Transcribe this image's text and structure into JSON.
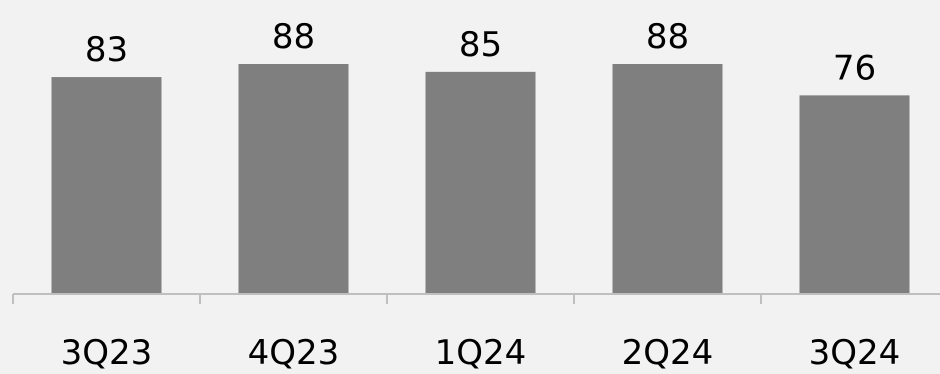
{
  "chart_data": {
    "type": "bar",
    "categories": [
      "3Q23",
      "4Q23",
      "1Q24",
      "2Q24",
      "3Q24"
    ],
    "values": [
      83,
      88,
      85,
      88,
      76
    ],
    "title": "",
    "xlabel": "",
    "ylabel": "",
    "ylim": [
      0,
      100
    ],
    "grid": false,
    "data_labels": true,
    "colors": {
      "bar": "#7f7f7f",
      "axis": "#bfbfbf",
      "background": "#f2f2f2",
      "text": "#000000"
    }
  }
}
